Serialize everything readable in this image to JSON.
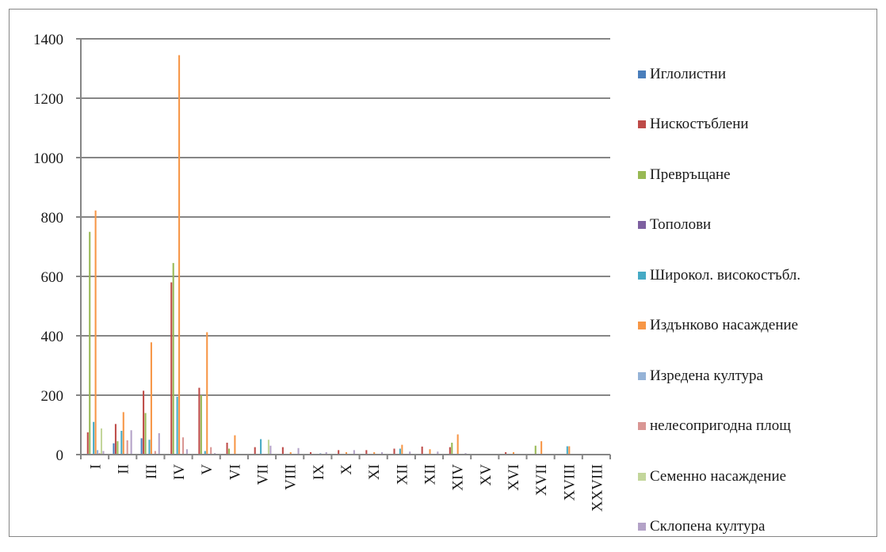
{
  "chart_data": {
    "type": "bar",
    "title": "",
    "xlabel": "",
    "ylabel": "",
    "ylim": [
      0,
      1400
    ],
    "yticks": [
      0,
      200,
      400,
      600,
      800,
      1000,
      1200,
      1400
    ],
    "grid": true,
    "legend_position": "right",
    "categories": [
      "I",
      "II",
      "III",
      "IV",
      "V",
      "VI",
      "VII",
      "VIII",
      "IX",
      "X",
      "XI",
      "XII",
      "XII",
      "XIV",
      "XV",
      "XVI",
      "XVII",
      "XVIII",
      "XXVIII"
    ],
    "series": [
      {
        "name": "Иглолистни",
        "color": "#4a7ebb",
        "values": [
          0,
          38,
          55,
          0,
          0,
          0,
          0,
          0,
          0,
          0,
          0,
          0,
          0,
          0,
          0,
          0,
          0,
          0,
          0
        ]
      },
      {
        "name": "Нискостъблени",
        "color": "#be4b48",
        "values": [
          75,
          103,
          215,
          580,
          225,
          40,
          25,
          25,
          8,
          15,
          15,
          20,
          27,
          25,
          0,
          8,
          0,
          0,
          0
        ]
      },
      {
        "name": "Превръщане",
        "color": "#98b954",
        "values": [
          750,
          45,
          140,
          645,
          200,
          20,
          0,
          0,
          0,
          0,
          0,
          0,
          0,
          40,
          0,
          0,
          30,
          0,
          0
        ]
      },
      {
        "name": "Тополови",
        "color": "#7d60a0",
        "values": [
          0,
          0,
          0,
          0,
          0,
          0,
          0,
          0,
          0,
          0,
          0,
          0,
          0,
          0,
          0,
          0,
          0,
          0,
          0
        ]
      },
      {
        "name": "Широкол. високостъбл.",
        "color": "#46aac5",
        "values": [
          110,
          80,
          50,
          195,
          12,
          0,
          52,
          0,
          0,
          0,
          0,
          20,
          0,
          0,
          0,
          0,
          0,
          28,
          0
        ]
      },
      {
        "name": "Издънково насаждение",
        "color": "#f79646",
        "values": [
          822,
          143,
          378,
          1345,
          412,
          65,
          0,
          8,
          0,
          8,
          8,
          33,
          18,
          68,
          0,
          8,
          45,
          28,
          0
        ]
      },
      {
        "name": "Изредена култура",
        "color": "#95b3d7",
        "values": [
          15,
          0,
          0,
          0,
          0,
          0,
          0,
          0,
          5,
          0,
          0,
          0,
          0,
          0,
          0,
          0,
          0,
          0,
          0
        ]
      },
      {
        "name": "нелесопригодна площ",
        "color": "#d99694",
        "values": [
          5,
          48,
          12,
          58,
          25,
          0,
          0,
          0,
          0,
          0,
          0,
          0,
          0,
          0,
          0,
          0,
          0,
          0,
          0
        ]
      },
      {
        "name": "Семенно насаждение",
        "color": "#c3d69b",
        "values": [
          88,
          0,
          0,
          0,
          0,
          0,
          50,
          0,
          0,
          0,
          0,
          0,
          0,
          0,
          0,
          0,
          0,
          0,
          0
        ]
      },
      {
        "name": "Склопена култура",
        "color": "#b3a2c7",
        "values": [
          12,
          82,
          72,
          18,
          5,
          0,
          30,
          22,
          8,
          15,
          8,
          10,
          10,
          5,
          0,
          0,
          0,
          0,
          0
        ]
      }
    ]
  }
}
